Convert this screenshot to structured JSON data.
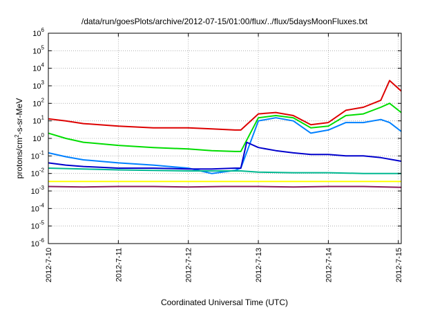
{
  "title": "/data/run/goesPlots/archive/2012-07-15/01:00/flux/../flux/5daysMoonFluxes.txt",
  "ylabel_base": "protons/cm",
  "ylabel_sup": "2",
  "ylabel_rest": "-s-sr-MeV",
  "xlabel": "Coordinated Universal Time (UTC)",
  "chart_data": {
    "type": "line",
    "title": "/data/run/goesPlots/archive/2012-07-15/01:00/flux/../flux/5daysMoonFluxes.txt",
    "xlabel": "Coordinated Universal Time (UTC)",
    "ylabel": "protons/cm2-s-sr-MeV",
    "yscale": "log",
    "ylim": [
      1e-06,
      1000000.0
    ],
    "xlim": [
      "2012-07-10",
      "2012-07-15 01:00"
    ],
    "grid": true,
    "x_tick_labels": [
      "2012-7-10",
      "2012-7-11",
      "2012-7-12",
      "2012-7-13",
      "2012-7-14",
      "2012-7-15"
    ],
    "y_tick_labels": [
      {
        "base": "10",
        "exp": "-6"
      },
      {
        "base": "10",
        "exp": "-5"
      },
      {
        "base": "10",
        "exp": "-4"
      },
      {
        "base": "10",
        "exp": "-3"
      },
      {
        "base": "10",
        "exp": "-2"
      },
      {
        "base": "10",
        "exp": "-1"
      },
      {
        "base": "10",
        "exp": "0"
      },
      {
        "base": "10",
        "exp": "1"
      },
      {
        "base": "10",
        "exp": "2"
      },
      {
        "base": "10",
        "exp": "3"
      },
      {
        "base": "10",
        "exp": "4"
      },
      {
        "base": "10",
        "exp": "5"
      },
      {
        "base": "10",
        "exp": "6"
      }
    ],
    "series": [
      {
        "color": "#dd0000",
        "x": [
          "2012-07-10 00:00",
          "2012-07-10 06:00",
          "2012-07-10 12:00",
          "2012-07-11 00:00",
          "2012-07-11 12:00",
          "2012-07-12 00:00",
          "2012-07-12 08:00",
          "2012-07-12 16:00",
          "2012-07-12 18:00",
          "2012-07-13 00:00",
          "2012-07-13 06:00",
          "2012-07-13 12:00",
          "2012-07-13 18:00",
          "2012-07-14 00:00",
          "2012-07-14 06:00",
          "2012-07-14 12:00",
          "2012-07-14 18:00",
          "2012-07-14 21:00",
          "2012-07-15 01:00"
        ],
        "y": [
          13,
          10,
          7,
          5,
          4,
          4,
          3.5,
          3,
          3,
          25,
          30,
          20,
          6,
          8,
          40,
          60,
          150,
          2000,
          500
        ]
      },
      {
        "color": "#00dd00",
        "x": [
          "2012-07-10 00:00",
          "2012-07-10 06:00",
          "2012-07-10 12:00",
          "2012-07-11 00:00",
          "2012-07-11 12:00",
          "2012-07-12 00:00",
          "2012-07-12 08:00",
          "2012-07-12 16:00",
          "2012-07-12 18:00",
          "2012-07-13 00:00",
          "2012-07-13 06:00",
          "2012-07-13 12:00",
          "2012-07-13 18:00",
          "2012-07-14 00:00",
          "2012-07-14 06:00",
          "2012-07-14 12:00",
          "2012-07-14 18:00",
          "2012-07-14 21:00",
          "2012-07-15 01:00"
        ],
        "y": [
          2,
          1,
          0.6,
          0.4,
          0.3,
          0.25,
          0.2,
          0.18,
          0.18,
          15,
          20,
          15,
          4,
          5,
          20,
          25,
          60,
          100,
          30
        ]
      },
      {
        "color": "#0080ff",
        "x": [
          "2012-07-10 00:00",
          "2012-07-10 06:00",
          "2012-07-10 12:00",
          "2012-07-11 00:00",
          "2012-07-11 12:00",
          "2012-07-12 00:00",
          "2012-07-12 08:00",
          "2012-07-12 16:00",
          "2012-07-12 18:00",
          "2012-07-13 00:00",
          "2012-07-13 06:00",
          "2012-07-13 12:00",
          "2012-07-13 18:00",
          "2012-07-14 00:00",
          "2012-07-14 06:00",
          "2012-07-14 12:00",
          "2012-07-14 18:00",
          "2012-07-14 21:00",
          "2012-07-15 01:00"
        ],
        "y": [
          0.15,
          0.09,
          0.06,
          0.04,
          0.03,
          0.02,
          0.01,
          0.015,
          0.02,
          10,
          15,
          10,
          2,
          3,
          8,
          8,
          12,
          8,
          2.5
        ]
      },
      {
        "color": "#0000cc",
        "x": [
          "2012-07-10 00:00",
          "2012-07-10 06:00",
          "2012-07-10 12:00",
          "2012-07-11 00:00",
          "2012-07-11 12:00",
          "2012-07-12 00:00",
          "2012-07-12 08:00",
          "2012-07-12 16:00",
          "2012-07-12 18:00",
          "2012-07-12 20:00",
          "2012-07-13 00:00",
          "2012-07-13 06:00",
          "2012-07-13 12:00",
          "2012-07-13 18:00",
          "2012-07-14 00:00",
          "2012-07-14 06:00",
          "2012-07-14 12:00",
          "2012-07-14 18:00",
          "2012-07-15 01:00"
        ],
        "y": [
          0.04,
          0.03,
          0.025,
          0.02,
          0.02,
          0.018,
          0.018,
          0.02,
          0.02,
          0.6,
          0.3,
          0.2,
          0.15,
          0.12,
          0.12,
          0.1,
          0.1,
          0.08,
          0.05
        ]
      },
      {
        "color": "#00b890",
        "x": [
          "2012-07-10 00:00",
          "2012-07-10 12:00",
          "2012-07-11 00:00",
          "2012-07-11 12:00",
          "2012-07-12 00:00",
          "2012-07-12 12:00",
          "2012-07-12 18:00",
          "2012-07-13 00:00",
          "2012-07-13 12:00",
          "2012-07-14 00:00",
          "2012-07-14 12:00",
          "2012-07-15 01:00"
        ],
        "y": [
          0.02,
          0.018,
          0.016,
          0.015,
          0.014,
          0.014,
          0.014,
          0.012,
          0.011,
          0.011,
          0.01,
          0.01
        ]
      },
      {
        "color": "#ffff00",
        "x": [
          "2012-07-10 00:00",
          "2012-07-11 00:00",
          "2012-07-12 00:00",
          "2012-07-13 00:00",
          "2012-07-14 00:00",
          "2012-07-15 01:00"
        ],
        "y": [
          0.0035,
          0.0035,
          0.0035,
          0.0035,
          0.0035,
          0.0035
        ]
      },
      {
        "color": "#8b1a5a",
        "x": [
          "2012-07-10 00:00",
          "2012-07-10 12:00",
          "2012-07-11 00:00",
          "2012-07-11 12:00",
          "2012-07-12 00:00",
          "2012-07-12 12:00",
          "2012-07-13 00:00",
          "2012-07-13 12:00",
          "2012-07-14 00:00",
          "2012-07-14 12:00",
          "2012-07-15 01:00"
        ],
        "y": [
          0.0018,
          0.0017,
          0.0018,
          0.0018,
          0.0017,
          0.0018,
          0.0018,
          0.0017,
          0.0018,
          0.0018,
          0.0016
        ]
      }
    ]
  }
}
